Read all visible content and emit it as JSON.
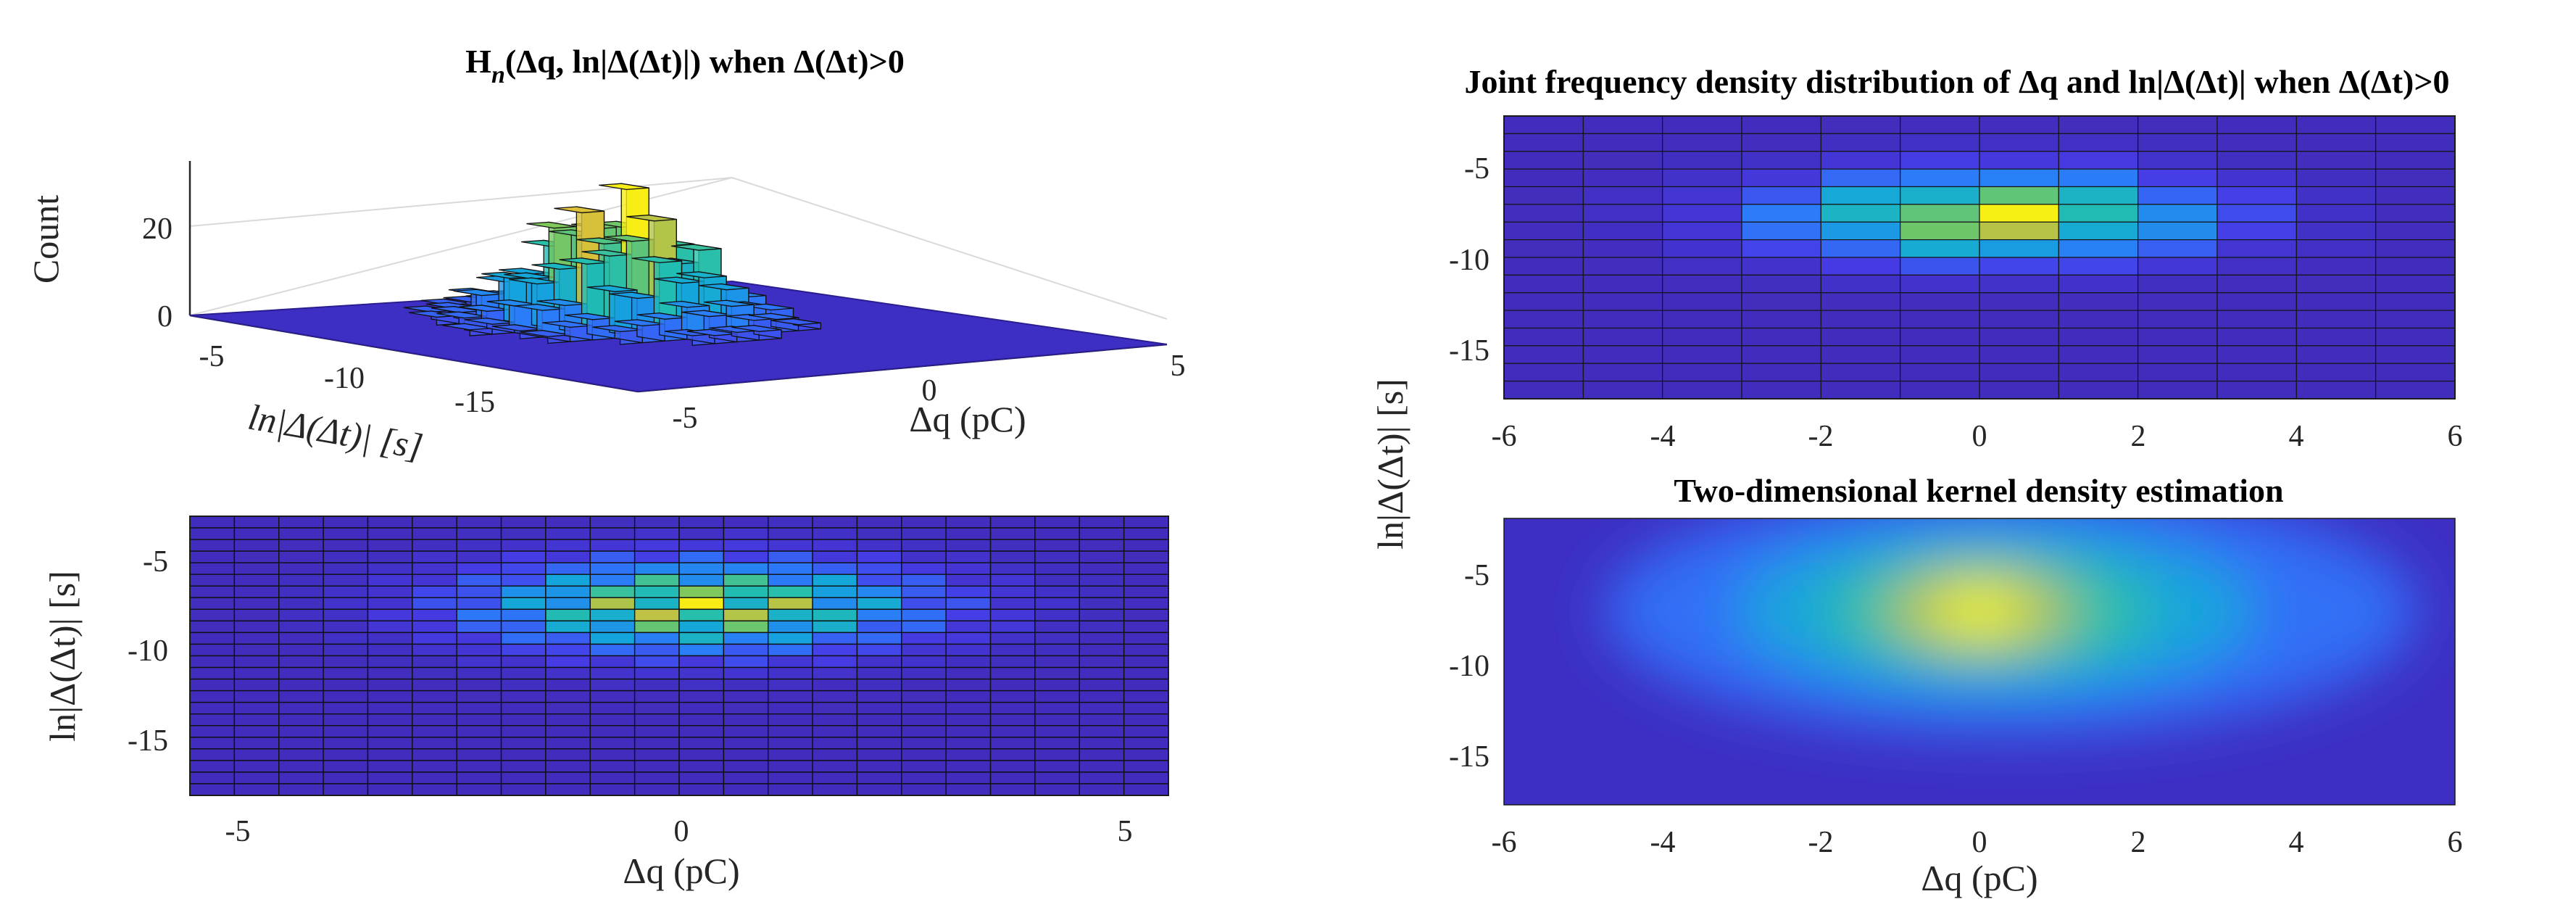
{
  "colors": {
    "viridis_low": "#3f26c9",
    "viridis_mid": "#1fb0d0",
    "viridis_high": "#f9f90c",
    "kde_base": "#3d4fd6"
  },
  "chart_data": [
    {
      "id": "bar3",
      "type": "bar3d",
      "title_main": "H",
      "title_sub": "n",
      "title_rest": "(Δq, ln|Δ(Δt)|) when Δ(Δt)>0",
      "zlabel": "Count",
      "xlabel": "Δq (pC)",
      "ylabel": "ln|Δ(Δt)| [s]",
      "xlim": [
        -6,
        6
      ],
      "ylim": [
        -18,
        -2
      ],
      "zlim": [
        0,
        35
      ],
      "x_ticks": [
        "-5",
        "0",
        "5"
      ],
      "y_ticks": [
        "-5",
        "-10",
        "-15"
      ],
      "z_ticks": [
        "0",
        "20"
      ],
      "peak_count": 31
    },
    {
      "id": "hist-b",
      "type": "heatmap",
      "xlabel": "Δq (pC)",
      "ylabel": "ln|Δ(Δt)| [s]",
      "xlim": [
        -5.5,
        5.5
      ],
      "ylim": [
        -18,
        -2.5
      ],
      "x_ticks": [
        "-5",
        "0",
        "5"
      ],
      "y_ticks": [
        "-5",
        "-10",
        "-15"
      ],
      "peak": {
        "x": 0.25,
        "y": -7.5
      }
    },
    {
      "id": "joint",
      "type": "heatmap",
      "title": "Joint frequency density distribution of Δq and ln|Δ(Δt)| when Δ(Δt)>0",
      "xlim": [
        -6,
        6
      ],
      "ylim": [
        -18,
        -2.5
      ],
      "x_ticks": [
        "-6",
        "-4",
        "-2",
        "0",
        "2",
        "4",
        "6"
      ],
      "y_ticks": [
        "-5",
        "-10",
        "-15"
      ],
      "peak": {
        "x": 0.5,
        "y": -8
      }
    },
    {
      "id": "kde",
      "type": "heatmap",
      "title": "Two-dimensional kernel density estimation",
      "xlabel": "Δq (pC)",
      "xlim": [
        -6,
        6
      ],
      "ylim": [
        -18,
        -2.5
      ],
      "x_ticks": [
        "-6",
        "-4",
        "-2",
        "0",
        "2",
        "4",
        "6"
      ],
      "y_ticks": [
        "-5",
        "-10",
        "-15"
      ],
      "peak": {
        "x": 0,
        "y": -7.5
      }
    }
  ],
  "shared_ylabel": "ln|Δ(Δt)| [s]"
}
